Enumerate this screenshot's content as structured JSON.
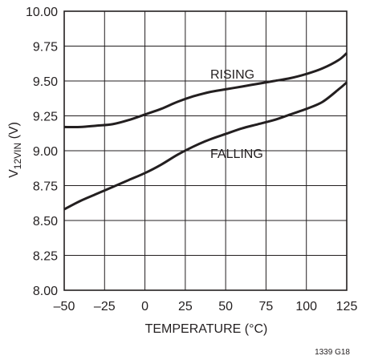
{
  "chart_data": {
    "type": "line",
    "xlabel": "TEMPERATURE (°C)",
    "ylabel_main": "V",
    "ylabel_sub": "12VIN",
    "ylabel_unit": " (V)",
    "xlim": [
      -50,
      125
    ],
    "ylim": [
      8.0,
      10.0
    ],
    "xticks": [
      -50,
      -25,
      0,
      25,
      50,
      75,
      100,
      125
    ],
    "xtick_labels": [
      "–50",
      "–25",
      "0",
      "25",
      "50",
      "75",
      "100",
      "125"
    ],
    "yticks": [
      8.0,
      8.25,
      8.5,
      8.75,
      9.0,
      9.25,
      9.5,
      9.75,
      10.0
    ],
    "ytick_labels": [
      "8.00",
      "8.25",
      "8.50",
      "8.75",
      "9.00",
      "9.25",
      "9.50",
      "9.75",
      "10.00"
    ],
    "grid": true,
    "series": [
      {
        "name": "RISING",
        "x": [
          -50,
          -40,
          -30,
          -20,
          -10,
          0,
          10,
          20,
          30,
          40,
          50,
          60,
          70,
          80,
          90,
          100,
          110,
          120,
          125
        ],
        "y": [
          9.17,
          9.17,
          9.18,
          9.19,
          9.22,
          9.26,
          9.3,
          9.35,
          9.39,
          9.42,
          9.44,
          9.46,
          9.48,
          9.5,
          9.52,
          9.55,
          9.59,
          9.65,
          9.7
        ]
      },
      {
        "name": "FALLING",
        "x": [
          -50,
          -40,
          -30,
          -20,
          -10,
          0,
          10,
          20,
          30,
          40,
          50,
          60,
          70,
          80,
          90,
          100,
          110,
          120,
          125
        ],
        "y": [
          8.58,
          8.64,
          8.69,
          8.74,
          8.79,
          8.84,
          8.9,
          8.97,
          9.03,
          9.08,
          9.12,
          9.16,
          9.19,
          9.22,
          9.26,
          9.3,
          9.35,
          9.44,
          9.49
        ]
      }
    ],
    "annotations": [
      "RISING",
      "FALLING"
    ],
    "figure_id": "1339 G18"
  }
}
